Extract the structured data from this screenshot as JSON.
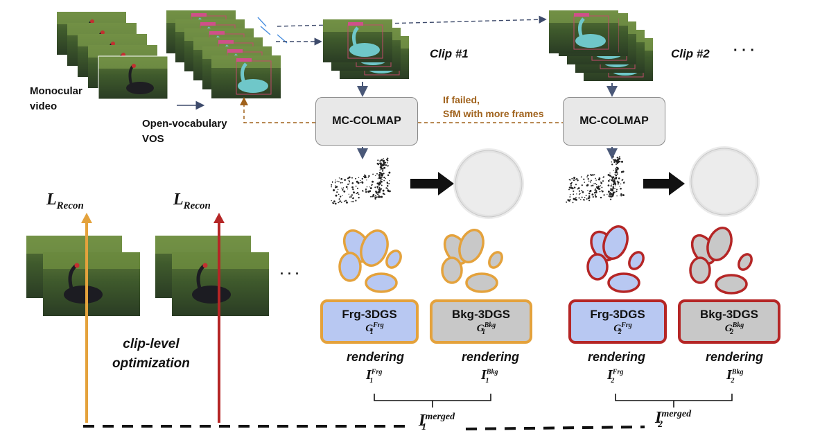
{
  "inputs": {
    "video_label": "Monocular\nvideo",
    "vos_label": "Open-vocabulary\nVOS"
  },
  "clips": [
    {
      "label": "Clip #1",
      "colmap": "MC-COLMAP",
      "frg": {
        "name": "Frg-3DGS",
        "g": "G",
        "g_sup": "Frg",
        "g_sub": "1"
      },
      "bkg": {
        "name": "Bkg-3DGS",
        "g": "G",
        "g_sup": "Bkg",
        "g_sub": "1"
      },
      "rendering": "rendering",
      "i_frg": {
        "base": "I",
        "sup": "Frg",
        "sub": "1"
      },
      "i_bkg": {
        "base": "I",
        "sup": "Bkg",
        "sub": "1"
      },
      "merged": {
        "base": "I",
        "sup": "merged",
        "sub": "1"
      }
    },
    {
      "label": "Clip #2",
      "colmap": "MC-COLMAP",
      "frg": {
        "name": "Frg-3DGS",
        "g": "G",
        "g_sup": "Frg",
        "g_sub": "2"
      },
      "bkg": {
        "name": "Bkg-3DGS",
        "g": "G",
        "g_sup": "Bkg",
        "g_sub": "2"
      },
      "rendering": "rendering",
      "i_frg": {
        "base": "I",
        "sup": "Frg",
        "sub": "2"
      },
      "i_bkg": {
        "base": "I",
        "sup": "Bkg",
        "sub": "2"
      },
      "merged": {
        "base": "I",
        "sup": "merged",
        "sub": "2"
      }
    }
  ],
  "ellipsis": "· · ·",
  "ellipsis_small": "· · ·",
  "fail_note": "If failed,\nSfM with more frames",
  "loss": {
    "base": "L",
    "sub": "Recon"
  },
  "clip_level": "clip-level\noptimization",
  "colors": {
    "orange": "#e4a23c",
    "red": "#b52626",
    "frg_fill": "#b8c8f2",
    "bkg_fill": "#c8c8c8",
    "brown": "#a0621c",
    "navy": "#3d4a6b"
  }
}
